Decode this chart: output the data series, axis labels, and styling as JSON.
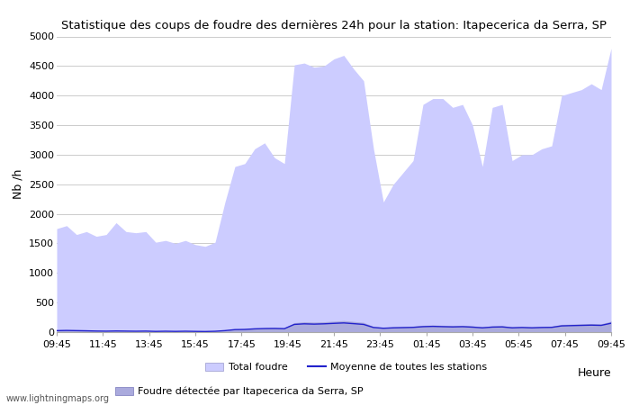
{
  "title": "Statistique des coups de foudre des dernières 24h pour la station: Itapecerica da Serra, SP",
  "xlabel": "Heure",
  "ylabel": "Nb /h",
  "xlim_labels": [
    "09:45",
    "11:45",
    "13:45",
    "15:45",
    "17:45",
    "19:45",
    "21:45",
    "23:45",
    "01:45",
    "03:45",
    "05:45",
    "07:45",
    "09:45"
  ],
  "ylim": [
    0,
    5000
  ],
  "yticks": [
    0,
    500,
    1000,
    1500,
    2000,
    2500,
    3000,
    3500,
    4000,
    4500,
    5000
  ],
  "fill_color_total": "#ccccff",
  "fill_color_detected": "#aaaadd",
  "line_color": "#2222cc",
  "bg_color": "#ffffff",
  "grid_color": "#cccccc",
  "watermark": "www.lightningmaps.org",
  "legend_total": "Total foudre",
  "legend_moyenne": "Moyenne de toutes les stations",
  "legend_detected": "Foudre détectée par Itapecerica da Serra, SP",
  "total_foudre": [
    1750,
    1800,
    1650,
    1700,
    1620,
    1650,
    1850,
    1700,
    1680,
    1700,
    1520,
    1550,
    1500,
    1550,
    1480,
    1450,
    1520,
    2200,
    2800,
    2850,
    3100,
    3200,
    2950,
    2850,
    4520,
    4550,
    4480,
    4500,
    4620,
    4680,
    4450,
    4250,
    3100,
    2200,
    2500,
    2700,
    2900,
    3850,
    3950,
    3950,
    3800,
    3850,
    3500,
    2800,
    3800,
    3850,
    2900,
    3000,
    3000,
    3100,
    3150,
    4000,
    4050,
    4100,
    4200,
    4100,
    4800
  ],
  "detected_foudre": [
    30,
    35,
    30,
    25,
    20,
    18,
    22,
    20,
    18,
    20,
    15,
    18,
    15,
    18,
    15,
    12,
    18,
    30,
    50,
    55,
    65,
    70,
    75,
    70,
    160,
    175,
    170,
    175,
    185,
    195,
    180,
    165,
    95,
    80,
    90,
    95,
    100,
    115,
    120,
    115,
    110,
    115,
    105,
    90,
    105,
    110,
    90,
    95,
    90,
    95,
    100,
    130,
    135,
    140,
    145,
    140,
    185
  ],
  "moyenne_stations": [
    25,
    28,
    25,
    22,
    18,
    16,
    19,
    17,
    15,
    17,
    12,
    15,
    12,
    15,
    12,
    10,
    14,
    25,
    42,
    45,
    55,
    60,
    62,
    58,
    130,
    140,
    135,
    140,
    148,
    155,
    143,
    130,
    78,
    65,
    72,
    76,
    80,
    92,
    97,
    92,
    88,
    92,
    84,
    72,
    85,
    88,
    72,
    78,
    72,
    78,
    80,
    105,
    110,
    114,
    118,
    114,
    150
  ]
}
